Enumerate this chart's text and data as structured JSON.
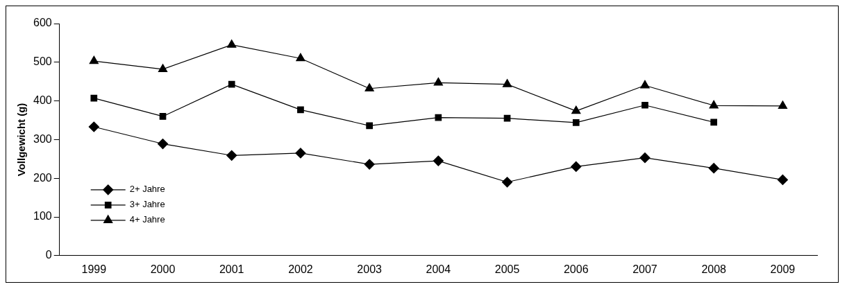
{
  "chart_data": {
    "type": "line",
    "ylabel": "Vollgewicht (g)",
    "categories": [
      "1999",
      "2000",
      "2001",
      "2002",
      "2003",
      "2004",
      "2005",
      "2006",
      "2007",
      "2008",
      "2009"
    ],
    "ylim": [
      0,
      600
    ],
    "yticks": [
      0,
      100,
      200,
      300,
      400,
      500,
      600
    ],
    "grid": false,
    "legend": "bottom left",
    "line_style": "solid",
    "series": [
      {
        "name": "2+ Jahre",
        "color": "#000000",
        "marker": "diamond",
        "values": [
          333,
          289,
          259,
          265,
          236,
          245,
          190,
          230,
          253,
          226,
          196
        ]
      },
      {
        "name": "3+ Jahre",
        "color": "#000000",
        "marker": "square",
        "values": [
          407,
          360,
          443,
          377,
          336,
          357,
          355,
          344,
          389,
          345,
          null
        ]
      },
      {
        "name": "4+ Jahre",
        "color": "#000000",
        "marker": "triangle",
        "values": [
          503,
          482,
          545,
          510,
          432,
          447,
          443,
          374,
          440,
          388,
          387
        ]
      }
    ]
  }
}
